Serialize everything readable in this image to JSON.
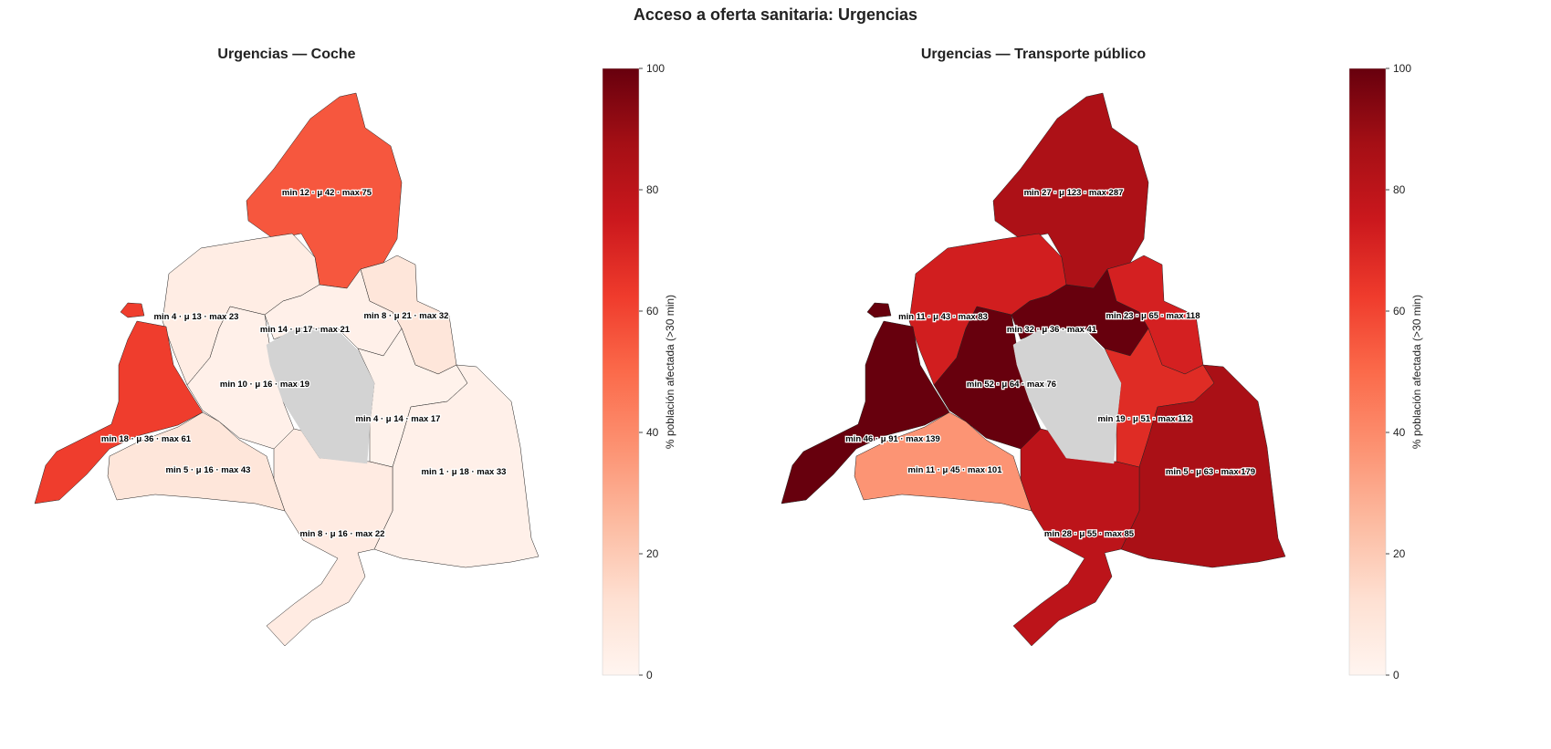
{
  "title": "Acceso a oferta sanitaria: Urgencias",
  "colormap": [
    "#fff5f0",
    "#fee0d2",
    "#fcbba1",
    "#fc9272",
    "#fb6a4a",
    "#ef3b2c",
    "#cb181d",
    "#a50f15",
    "#67000d"
  ],
  "nodata_color": "#d3d3d3",
  "chart_data": [
    {
      "type": "choropleth",
      "title": "Urgencias — Coche",
      "colorbar": {
        "label": "% población afectada (>30 min)",
        "range": [
          0,
          100
        ],
        "ticks": [
          "0",
          "20",
          "40",
          "60",
          "80",
          "100"
        ]
      },
      "regions": [
        {
          "id": "north",
          "value": 55,
          "label": "min 12 · μ 42 · max 75"
        },
        {
          "id": "northwest",
          "value": 5,
          "label": "min 4 · μ 13 · max 23"
        },
        {
          "id": "west",
          "value": 62,
          "label": "min 18 · μ 36 · max 61"
        },
        {
          "id": "southwest",
          "value": 9,
          "label": "min 5 · μ 16 · max 43"
        },
        {
          "id": "centre-west",
          "value": 3,
          "label": "min 10 · μ 16 · max 19"
        },
        {
          "id": "north-centre",
          "value": 3,
          "label": "min 14 · μ 17 · max 21"
        },
        {
          "id": "northeast",
          "value": 9,
          "label": "min 8 · μ 21 · max 32"
        },
        {
          "id": "east-centre",
          "value": 2,
          "label": "min 4 · μ 14 · max 17"
        },
        {
          "id": "east",
          "value": 3,
          "label": "min 1 · μ 18 · max 33"
        },
        {
          "id": "south",
          "value": 6,
          "label": "min 8 · μ 16 · max 22"
        },
        {
          "id": "madrid",
          "value": null,
          "label": ""
        }
      ]
    },
    {
      "type": "choropleth",
      "title": "Urgencias — Transporte público",
      "colorbar": {
        "label": "% población afectada (>30 min)",
        "range": [
          0,
          100
        ],
        "ticks": [
          "0",
          "20",
          "40",
          "60",
          "80",
          "100"
        ]
      },
      "regions": [
        {
          "id": "north",
          "value": 85,
          "label": "min 27 · μ 123 · max 287"
        },
        {
          "id": "northwest",
          "value": 73,
          "label": "min 11 · μ 43 · max 83"
        },
        {
          "id": "west",
          "value": 100,
          "label": "min 46 · μ 91 · max 139"
        },
        {
          "id": "southwest",
          "value": 37,
          "label": "min 11 · μ 45 · max 101"
        },
        {
          "id": "centre-west",
          "value": 100,
          "label": "min 52 · μ 64 · max 76"
        },
        {
          "id": "north-centre",
          "value": 100,
          "label": "min 32 · μ 36 · max 41"
        },
        {
          "id": "northeast",
          "value": 72,
          "label": "min 23 · μ 65 · max 118"
        },
        {
          "id": "east-centre",
          "value": 68,
          "label": "min 19 · μ 51 · max 112"
        },
        {
          "id": "east",
          "value": 86,
          "label": "min 5 · μ 63 · max 179"
        },
        {
          "id": "south",
          "value": 80,
          "label": "min 28 · μ 55 · max 85"
        },
        {
          "id": "madrid",
          "value": null,
          "label": ""
        }
      ]
    }
  ]
}
